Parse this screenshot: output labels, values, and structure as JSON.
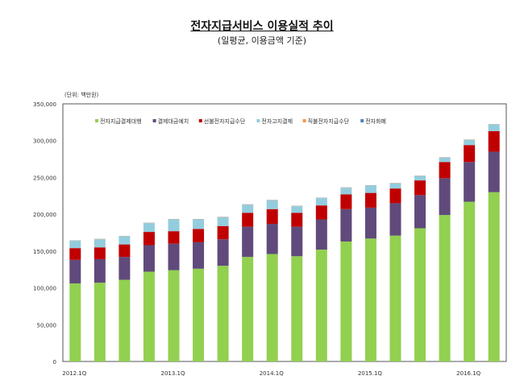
{
  "chart_data": {
    "type": "bar",
    "stacked": true,
    "title": "전자지급서비스 이용실적 추이",
    "subtitle": "(일평균, 이용금액 기준)",
    "unit_label": "(단위: 백만원)",
    "ylim": [
      0,
      350000
    ],
    "yticks": [
      0,
      50000,
      100000,
      150000,
      200000,
      250000,
      300000,
      350000
    ],
    "ytick_labels": [
      "0",
      "50,000",
      "100,000",
      "150,000",
      "200,000",
      "250,000",
      "300,000",
      "350,000"
    ],
    "categories": [
      "2012.1Q",
      "2012.2Q",
      "2012.3Q",
      "2012.4Q",
      "2013.1Q",
      "2013.2Q",
      "2013.3Q",
      "2013.4Q",
      "2014.1Q",
      "2014.2Q",
      "2014.3Q",
      "2014.4Q",
      "2015.1Q",
      "2015.2Q",
      "2015.3Q",
      "2015.4Q",
      "2016.1Q",
      "2016.2Q"
    ],
    "xtick_labels": [
      {
        "index": 0,
        "label": "2012.1Q"
      },
      {
        "index": 4,
        "label": "2013.1Q"
      },
      {
        "index": 8,
        "label": "2014.1Q"
      },
      {
        "index": 12,
        "label": "2015.1Q"
      },
      {
        "index": 16,
        "label": "2016.1Q"
      }
    ],
    "grid": false,
    "legend_position": "top",
    "series": [
      {
        "name": "전자지급결제대행",
        "color": "#92d050",
        "values": [
          106000,
          107000,
          111000,
          122000,
          124000,
          126000,
          130000,
          142000,
          146000,
          143000,
          152000,
          163000,
          167000,
          171000,
          181000,
          199000,
          217000,
          230000
        ]
      },
      {
        "name": "결제대금예치",
        "color": "#604a7b",
        "values": [
          32000,
          32000,
          31000,
          36000,
          36000,
          36000,
          36000,
          41000,
          41000,
          40000,
          41000,
          44000,
          42000,
          44000,
          45000,
          50000,
          54000,
          55000
        ]
      },
      {
        "name": "선불전자지급수단",
        "color": "#c00000",
        "values": [
          16000,
          16000,
          17000,
          18000,
          17000,
          18000,
          18000,
          19000,
          20000,
          19000,
          19000,
          20000,
          20000,
          20000,
          20000,
          22000,
          23000,
          28000
        ]
      },
      {
        "name": "전자고지결제",
        "color": "#93cddd",
        "values": [
          10000,
          11000,
          11000,
          12000,
          16000,
          13000,
          12000,
          11000,
          12000,
          9000,
          10000,
          9000,
          10000,
          7000,
          6000,
          6000,
          7000,
          9000
        ]
      },
      {
        "name": "직불전자지급수단",
        "color": "#f79646",
        "values": [
          300,
          300,
          300,
          300,
          300,
          300,
          300,
          300,
          300,
          300,
          300,
          300,
          300,
          300,
          300,
          300,
          300,
          300
        ]
      },
      {
        "name": "전자화폐",
        "color": "#4f81bd",
        "values": [
          200,
          200,
          200,
          200,
          200,
          200,
          200,
          200,
          200,
          200,
          200,
          200,
          200,
          200,
          200,
          200,
          200,
          200
        ]
      }
    ]
  }
}
